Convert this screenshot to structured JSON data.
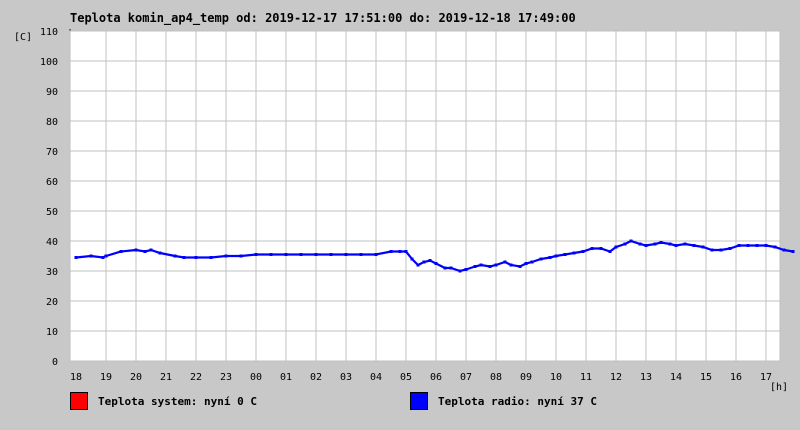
{
  "chart_data": {
    "type": "line",
    "title": "Teplota komin_ap4_temp od: 2019-12-17 17:51:00 do: 2019-12-18 17:49:00",
    "ylabel": "[C]",
    "xlabel": "[h]",
    "ylim": [
      0,
      110
    ],
    "yticks": [
      "0",
      "10",
      "20",
      "30",
      "40",
      "50",
      "60",
      "70",
      "80",
      "90",
      "100",
      "110"
    ],
    "xticks": [
      "18",
      "19",
      "20",
      "21",
      "22",
      "23",
      "00",
      "01",
      "02",
      "03",
      "04",
      "05",
      "06",
      "07",
      "08",
      "09",
      "10",
      "11",
      "12",
      "13",
      "14",
      "15",
      "16",
      "17"
    ],
    "grid": true,
    "series": [
      {
        "name": "Teplota radio",
        "color": "#0000ff",
        "x": [
          0.0,
          0.5,
          0.9,
          1.0,
          1.5,
          2.0,
          2.3,
          2.5,
          2.8,
          3.3,
          3.6,
          4.0,
          4.5,
          5.0,
          5.5,
          6.0,
          6.5,
          7.0,
          7.5,
          8.0,
          8.5,
          9.0,
          9.5,
          10.0,
          10.5,
          10.8,
          11.0,
          11.2,
          11.4,
          11.6,
          11.8,
          12.0,
          12.3,
          12.5,
          12.8,
          13.0,
          13.3,
          13.5,
          13.8,
          14.0,
          14.3,
          14.5,
          14.8,
          15.0,
          15.2,
          15.5,
          15.8,
          16.0,
          16.3,
          16.6,
          16.9,
          17.2,
          17.5,
          17.8,
          18.0,
          18.3,
          18.5,
          18.8,
          19.0,
          19.3,
          19.5,
          19.8,
          20.0,
          20.3,
          20.6,
          20.9,
          21.2,
          21.5,
          21.8,
          22.1,
          22.4,
          22.7,
          23.0,
          23.3,
          23.6,
          23.9
        ],
        "values": [
          34.5,
          35,
          34.5,
          35,
          36.5,
          37,
          36.5,
          37,
          36,
          35,
          34.5,
          34.5,
          34.5,
          35,
          35,
          35.5,
          35.5,
          35.5,
          35.5,
          35.5,
          35.5,
          35.5,
          35.5,
          35.5,
          36.5,
          36.5,
          36.5,
          34,
          32,
          33,
          33.5,
          32.5,
          31,
          31,
          30,
          30.5,
          31.5,
          32,
          31.5,
          32,
          33,
          32,
          31.5,
          32.5,
          33,
          34,
          34.5,
          35,
          35.5,
          36,
          36.5,
          37.5,
          37.5,
          36.5,
          38,
          39,
          40,
          39,
          38.5,
          39,
          39.5,
          39,
          38.5,
          39,
          38.5,
          38,
          37,
          37,
          37.5,
          38.5,
          38.5,
          38.5,
          38.5,
          38,
          37,
          36.5
        ]
      }
    ]
  },
  "legend": [
    {
      "label": "Teplota system: nyní 0 C",
      "color": "#ff0000"
    },
    {
      "label": "Teplota radio: nyní 37 C",
      "color": "#0000ff"
    }
  ]
}
